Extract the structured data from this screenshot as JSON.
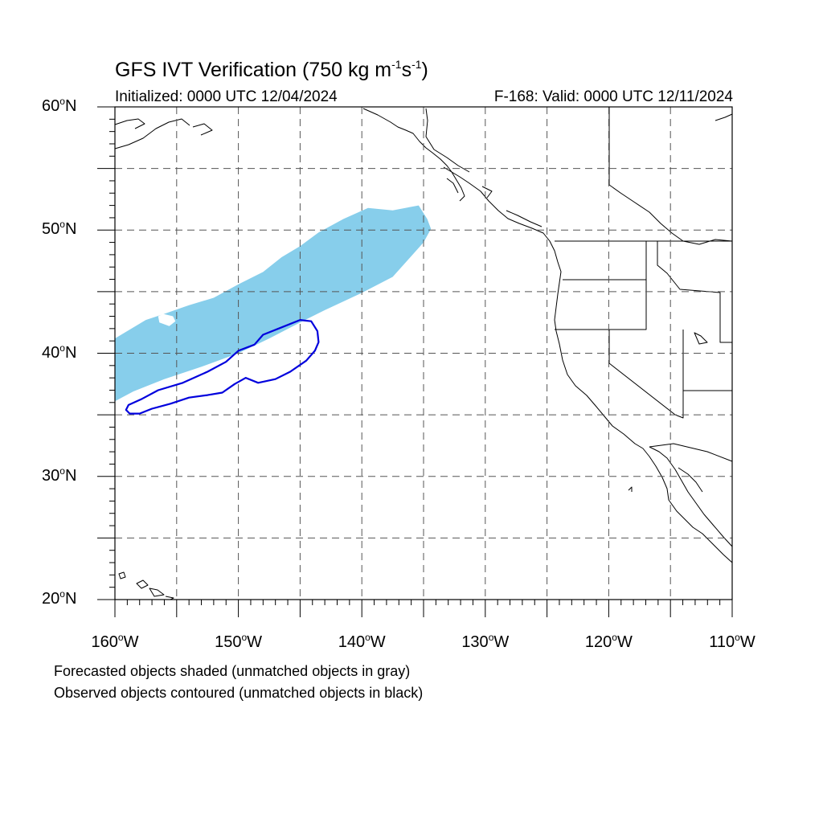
{
  "header": {
    "title_main": "GFS IVT Verification (750 kg m",
    "title_exp1": "-1",
    "title_mid": "s",
    "title_exp2": "-1",
    "title_end": ")",
    "initialized": "Initialized: 0000 UTC 12/04/2024",
    "valid": "F-168: Valid: 0000 UTC 12/11/2024"
  },
  "axes": {
    "lat_labels": [
      {
        "value": 60,
        "text": "60",
        "suffix": "N"
      },
      {
        "value": 50,
        "text": "50",
        "suffix": "N"
      },
      {
        "value": 40,
        "text": "40",
        "suffix": "N"
      },
      {
        "value": 30,
        "text": "30",
        "suffix": "N"
      },
      {
        "value": 20,
        "text": "20",
        "suffix": "N"
      }
    ],
    "lon_labels": [
      {
        "value": -160,
        "text": "160",
        "suffix": "W"
      },
      {
        "value": -150,
        "text": "150",
        "suffix": "W"
      },
      {
        "value": -140,
        "text": "140",
        "suffix": "W"
      },
      {
        "value": -130,
        "text": "130",
        "suffix": "W"
      },
      {
        "value": -120,
        "text": "120",
        "suffix": "W"
      },
      {
        "value": -110,
        "text": "110",
        "suffix": "W"
      }
    ],
    "lat_range": [
      20,
      60
    ],
    "lon_range": [
      -160,
      -110
    ],
    "gridline_spacing_deg": 5
  },
  "objects": {
    "forecast_color": "#87ceeb",
    "observed_color": "#0000dd",
    "forecast_object": [
      [
        -160,
        36.1
      ],
      [
        -158.5,
        36.9
      ],
      [
        -156,
        37.9
      ],
      [
        -153,
        38.9
      ],
      [
        -150,
        40.0
      ],
      [
        -147.5,
        41.2
      ],
      [
        -145,
        42.5
      ],
      [
        -143,
        43.5
      ],
      [
        -140,
        44.9
      ],
      [
        -137.5,
        46.2
      ],
      [
        -135.8,
        48.1
      ],
      [
        -135,
        49.0
      ],
      [
        -134.4,
        50.1
      ],
      [
        -134.7,
        50.9
      ],
      [
        -135.4,
        52.0
      ],
      [
        -137.5,
        51.6
      ],
      [
        -139.5,
        51.8
      ],
      [
        -141.5,
        50.9
      ],
      [
        -143.5,
        49.8
      ],
      [
        -145,
        48.7
      ],
      [
        -146.5,
        47.8
      ],
      [
        -148,
        46.6
      ],
      [
        -150,
        45.6
      ],
      [
        -152,
        44.5
      ],
      [
        -154,
        43.9
      ],
      [
        -156,
        43.2
      ],
      [
        -157.5,
        42.7
      ],
      [
        -160,
        41.2
      ]
    ],
    "forecast_notch": [
      [
        -156.1,
        43.2
      ],
      [
        -155.3,
        43.0
      ],
      [
        -155.1,
        42.6
      ],
      [
        -155.6,
        42.2
      ],
      [
        -156.4,
        42.5
      ],
      [
        -156.5,
        43.0
      ]
    ],
    "observed_object": [
      [
        -159.1,
        35.4
      ],
      [
        -158.9,
        35.8
      ],
      [
        -157.8,
        36.3
      ],
      [
        -156.5,
        37.0
      ],
      [
        -154.5,
        37.6
      ],
      [
        -152.5,
        38.5
      ],
      [
        -151,
        39.3
      ],
      [
        -150,
        40.2
      ],
      [
        -148.7,
        40.7
      ],
      [
        -148,
        41.5
      ],
      [
        -146.5,
        42.1
      ],
      [
        -145,
        42.7
      ],
      [
        -144.1,
        42.6
      ],
      [
        -143.6,
        41.8
      ],
      [
        -143.5,
        40.9
      ],
      [
        -143.8,
        40.2
      ],
      [
        -144.5,
        39.4
      ],
      [
        -145.8,
        38.5
      ],
      [
        -147,
        37.9
      ],
      [
        -148.4,
        37.6
      ],
      [
        -149.4,
        38.0
      ],
      [
        -150.3,
        37.5
      ],
      [
        -151.3,
        36.8
      ],
      [
        -152.5,
        36.6
      ],
      [
        -154,
        36.4
      ],
      [
        -155.5,
        35.9
      ],
      [
        -157,
        35.5
      ],
      [
        -158,
        35.1
      ],
      [
        -158.8,
        35.1
      ]
    ]
  },
  "captions": {
    "line1": "Forecasted objects shaded (unmatched objects in gray)",
    "line2": "Observed objects contoured (unmatched objects in black)"
  }
}
